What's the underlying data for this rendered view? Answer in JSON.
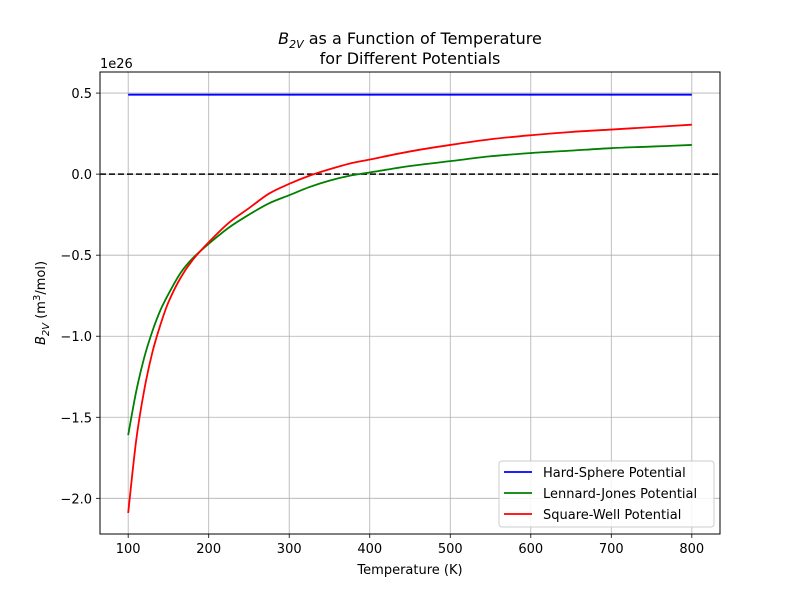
{
  "chart_data": {
    "type": "line",
    "title": {
      "line1_sym": "B",
      "line1_sub": "2V",
      "line1_rest": " as a Function of Temperature",
      "line2": "for Different Potentials"
    },
    "xlabel": "Temperature (K)",
    "ylabel": {
      "sym": "B",
      "sub": "2V",
      "pre": " (m",
      "sup": "3",
      "post": "/mol)"
    },
    "y_offset_label": "1e26",
    "xlim": [
      65,
      835
    ],
    "ylim": [
      -2.22,
      0.63
    ],
    "xticks": [
      100,
      200,
      300,
      400,
      500,
      600,
      700,
      800
    ],
    "xtick_labels": [
      "100",
      "200",
      "300",
      "400",
      "500",
      "600",
      "700",
      "800"
    ],
    "yticks": [
      0.5,
      0.0,
      -0.5,
      -1.0,
      -1.5,
      -2.0
    ],
    "ytick_labels": [
      "0.5",
      "0.0",
      "−0.5",
      "−1.0",
      "−1.5",
      "−2.0"
    ],
    "grid": true,
    "hline": {
      "y": 0,
      "style": "dashed",
      "color": "#000000"
    },
    "legend_position": "bottom-right",
    "series": [
      {
        "name": "Hard-Sphere Potential",
        "color": "#0000ff",
        "x": [
          100,
          800
        ],
        "y": [
          0.49,
          0.49
        ]
      },
      {
        "name": "Lennard-Jones Potential",
        "color": "#008000",
        "x": [
          100,
          110,
          120,
          130,
          140,
          150,
          165,
          180,
          200,
          225,
          250,
          275,
          300,
          325,
          350,
          375,
          400,
          450,
          500,
          550,
          600,
          650,
          700,
          750,
          800
        ],
        "y": [
          -1.61,
          -1.34,
          -1.13,
          -0.97,
          -0.84,
          -0.74,
          -0.61,
          -0.52,
          -0.43,
          -0.33,
          -0.25,
          -0.18,
          -0.13,
          -0.08,
          -0.04,
          -0.01,
          0.01,
          0.05,
          0.08,
          0.11,
          0.13,
          0.145,
          0.16,
          0.17,
          0.18
        ]
      },
      {
        "name": "Square-Well Potential",
        "color": "#ff0000",
        "x": [
          100,
          110,
          120,
          130,
          140,
          150,
          165,
          180,
          200,
          225,
          250,
          275,
          300,
          325,
          350,
          375,
          400,
          450,
          500,
          550,
          600,
          650,
          700,
          750,
          800
        ],
        "y": [
          -2.09,
          -1.64,
          -1.33,
          -1.1,
          -0.93,
          -0.79,
          -0.64,
          -0.53,
          -0.42,
          -0.3,
          -0.21,
          -0.12,
          -0.06,
          -0.01,
          0.03,
          0.065,
          0.09,
          0.14,
          0.18,
          0.215,
          0.24,
          0.26,
          0.275,
          0.29,
          0.305
        ]
      }
    ]
  }
}
